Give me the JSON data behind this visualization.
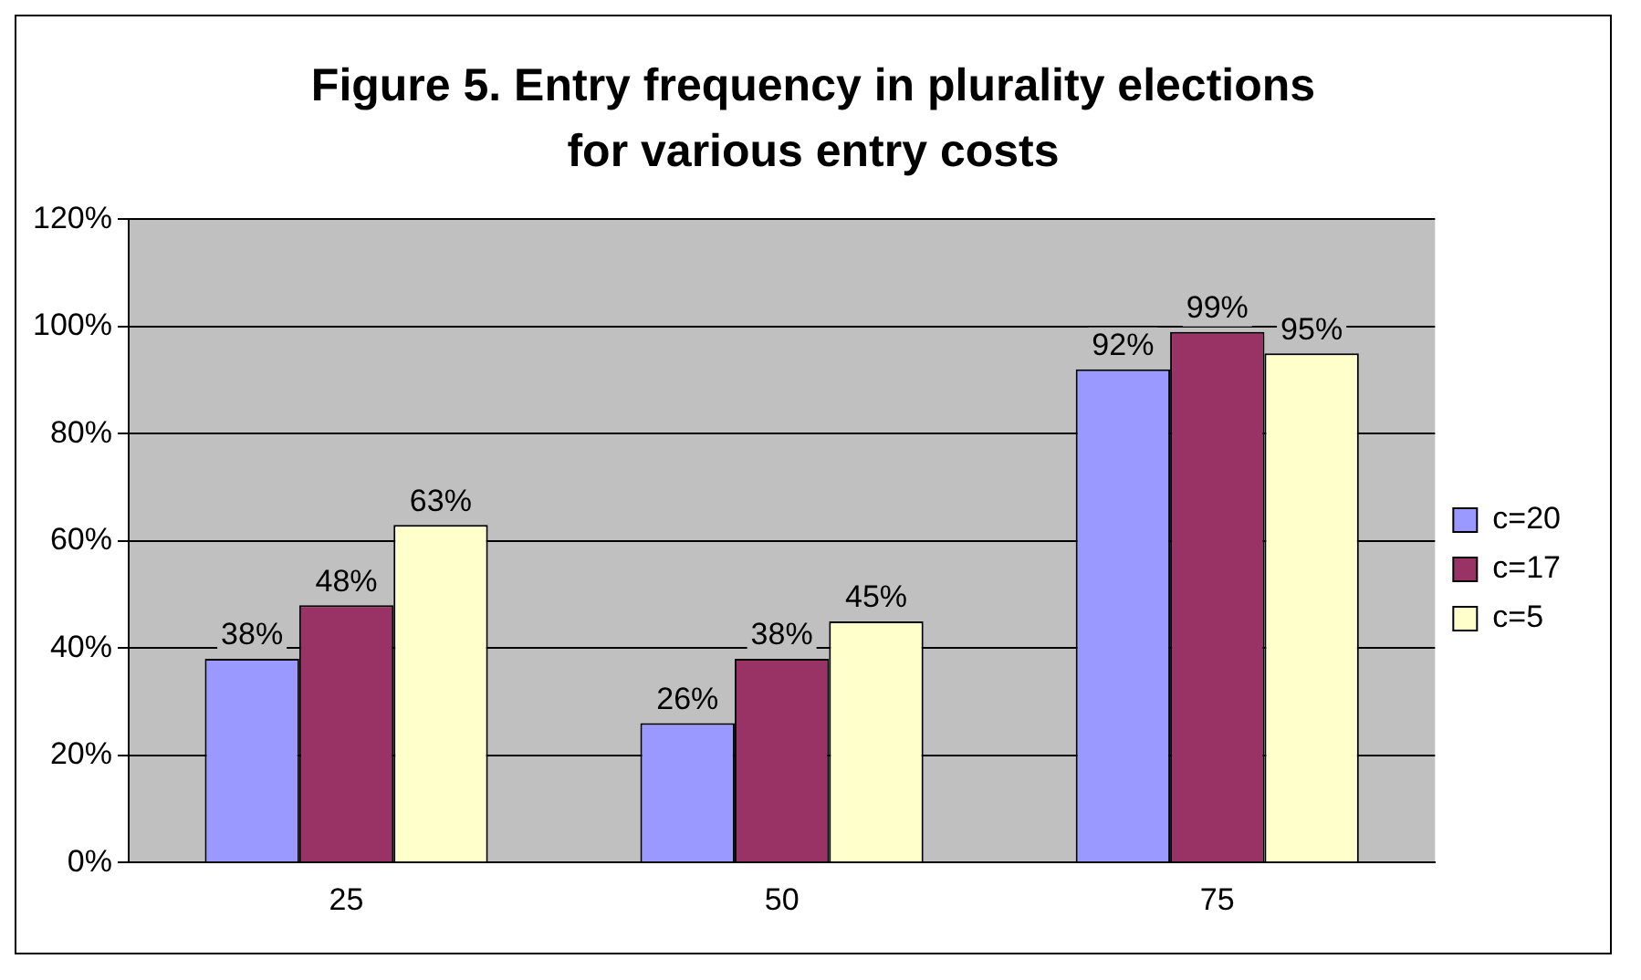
{
  "chart_data": {
    "type": "bar",
    "title": "Figure 5. Entry frequency in plurality elections for various entry costs",
    "categories": [
      "25",
      "50",
      "75"
    ],
    "series": [
      {
        "name": "c=20",
        "color": "#9999ff",
        "values": [
          38,
          26,
          92
        ],
        "value_labels": [
          "38%",
          "26%",
          "92%"
        ]
      },
      {
        "name": "c=17",
        "color": "#993366",
        "values": [
          48,
          38,
          99
        ],
        "value_labels": [
          "48%",
          "38%",
          "99%"
        ]
      },
      {
        "name": "c=5",
        "color": "#ffffcc",
        "values": [
          63,
          45,
          95
        ],
        "value_labels": [
          "63%",
          "45%",
          "95%"
        ]
      }
    ],
    "ylim": [
      0,
      120
    ],
    "yticks": [
      {
        "value": 0,
        "label": "0%"
      },
      {
        "value": 20,
        "label": "20%"
      },
      {
        "value": 40,
        "label": "40%"
      },
      {
        "value": 60,
        "label": "60%"
      },
      {
        "value": 80,
        "label": "80%"
      },
      {
        "value": 100,
        "label": "100%"
      },
      {
        "value": 120,
        "label": "120%"
      }
    ],
    "grid": "y",
    "legend": "right"
  }
}
